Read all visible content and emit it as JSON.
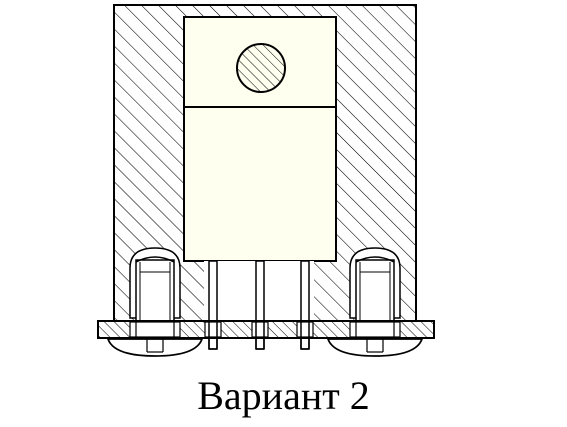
{
  "caption": "Вариант 2",
  "colors": {
    "stroke": "#000000",
    "component_fill": "#fffff0",
    "background": "#ffffff"
  },
  "parts": {
    "heatsink": "hatched-heatsink-body",
    "component": "to220-transistor",
    "pcb": "hatched-circuit-board",
    "screws": [
      "left-mounting-screw",
      "right-mounting-screw"
    ],
    "pins": 3
  }
}
